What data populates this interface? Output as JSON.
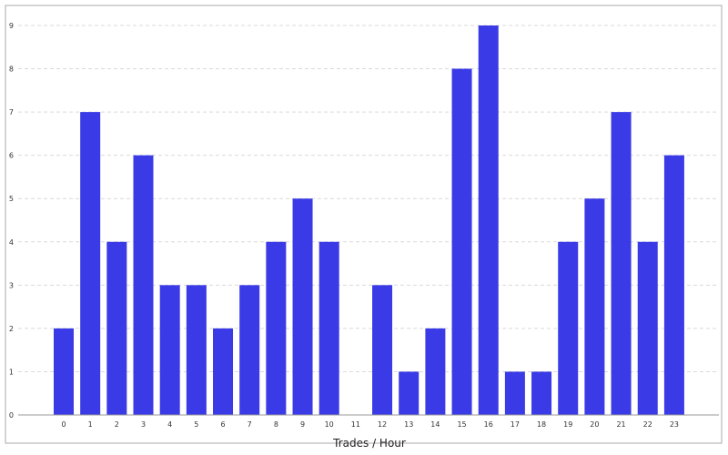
{
  "chart_data": {
    "type": "bar",
    "title": "",
    "xlabel": "Trades / Hour",
    "ylabel": "",
    "categories": [
      "0",
      "1",
      "2",
      "3",
      "4",
      "5",
      "6",
      "7",
      "8",
      "9",
      "10",
      "11",
      "12",
      "13",
      "14",
      "15",
      "16",
      "17",
      "18",
      "19",
      "20",
      "21",
      "22",
      "23"
    ],
    "values": [
      2,
      7,
      4,
      6,
      3,
      3,
      2,
      3,
      4,
      5,
      4,
      0,
      3,
      1,
      2,
      8,
      9,
      1,
      1,
      4,
      5,
      7,
      4,
      6
    ],
    "ylim": [
      0,
      9
    ],
    "yticks": [
      "0",
      "1",
      "2",
      "3",
      "4",
      "5",
      "6",
      "7",
      "8",
      "9"
    ],
    "grid": true,
    "legend": "none",
    "colors": {
      "bar": "#3a3ae6",
      "grid": "#d9d9d9",
      "axis": "#999999",
      "border": "#aaaaaa"
    }
  }
}
